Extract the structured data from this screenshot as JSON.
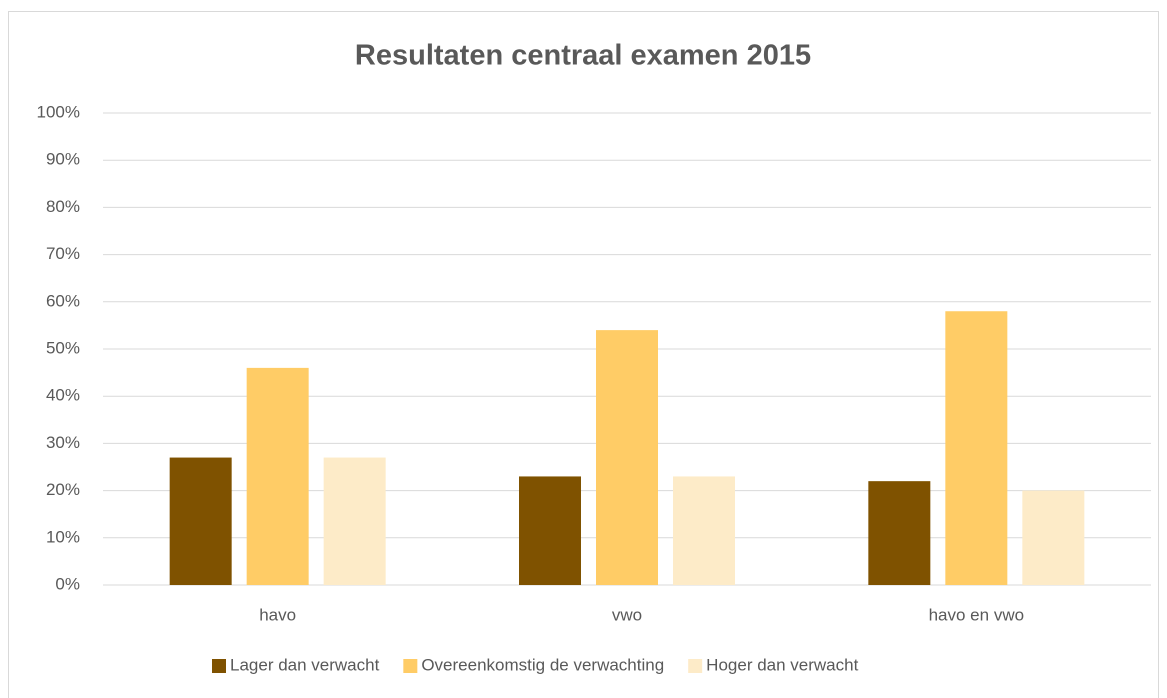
{
  "chart_data": {
    "type": "bar",
    "title": "Resultaten centraal examen 2015",
    "categories": [
      "havo",
      "vwo",
      "havo en vwo"
    ],
    "series": [
      {
        "name": "Lager dan verwacht",
        "color": "#7f5200",
        "values": [
          27,
          23,
          22
        ]
      },
      {
        "name": "Overeenkomstig de verwachting",
        "color": "#ffcc66",
        "values": [
          46,
          54,
          58
        ]
      },
      {
        "name": "Hoger dan verwacht",
        "color": "#fdebc8",
        "values": [
          27,
          23,
          20
        ]
      }
    ],
    "ylim": [
      0,
      100
    ],
    "yticks": [
      {
        "value": 0,
        "label": "0%"
      },
      {
        "value": 10,
        "label": "10%"
      },
      {
        "value": 20,
        "label": "20%"
      },
      {
        "value": 30,
        "label": "30%"
      },
      {
        "value": 40,
        "label": "40%"
      },
      {
        "value": 50,
        "label": "50%"
      },
      {
        "value": 60,
        "label": "60%"
      },
      {
        "value": 70,
        "label": "70%"
      },
      {
        "value": 80,
        "label": "80%"
      },
      {
        "value": 90,
        "label": "90%"
      },
      {
        "value": 100,
        "label": "100%"
      }
    ],
    "grid": true,
    "legend": "bottom"
  }
}
